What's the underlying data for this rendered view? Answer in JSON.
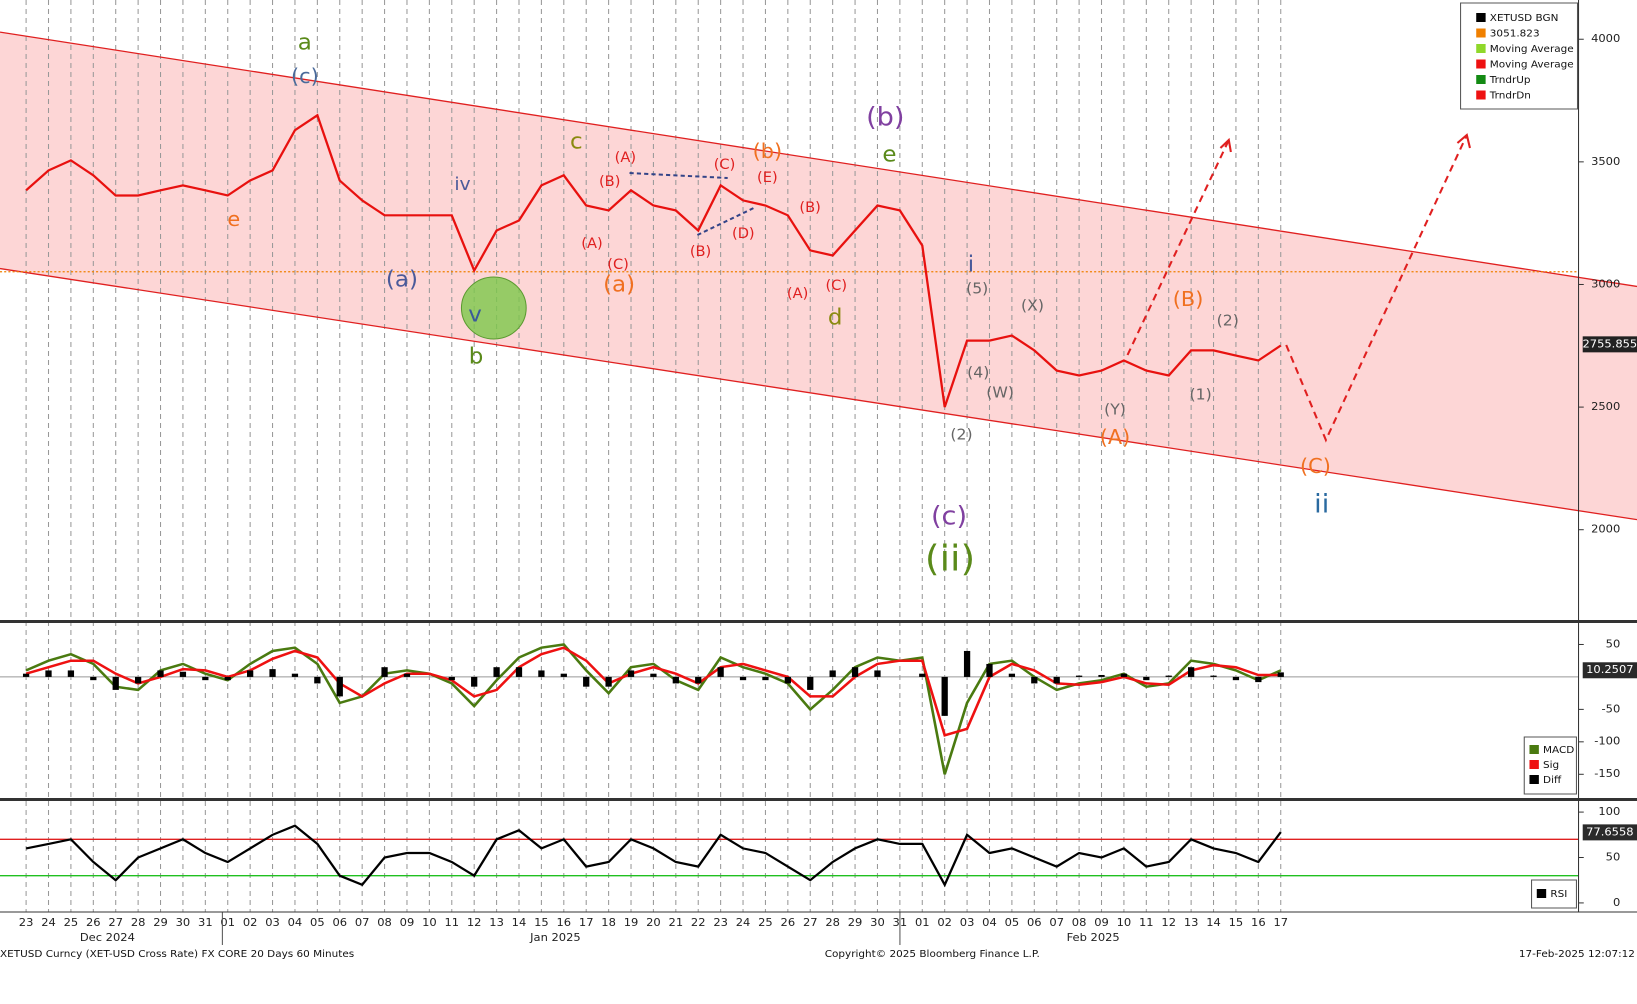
{
  "chart_data": [
    {
      "type": "line",
      "categories": [
        "23",
        "24",
        "25",
        "26",
        "27",
        "28",
        "29",
        "30",
        "31",
        "01",
        "02",
        "03",
        "04",
        "05",
        "06",
        "07",
        "08",
        "09",
        "10",
        "11",
        "12",
        "13",
        "14",
        "15",
        "16",
        "17",
        "18",
        "19",
        "20",
        "21",
        "22",
        "23",
        "24",
        "25",
        "26",
        "27",
        "28",
        "29",
        "30",
        "31",
        "01",
        "02",
        "03",
        "04",
        "05",
        "06",
        "07",
        "08",
        "09",
        "10",
        "11",
        "12",
        "13",
        "14",
        "15",
        "16",
        "17"
      ],
      "months": [
        "Dec 2024",
        "Jan 2025",
        "Feb 2025"
      ],
      "series": [
        {
          "name": "XETUSD BGN",
          "color": "#e8110f",
          "values": [
            3384,
            3465,
            3506,
            3445,
            3363,
            3363,
            3384,
            3404,
            3384,
            3363,
            3424,
            3465,
            3629,
            3690,
            3424,
            3343,
            3282,
            3282,
            3282,
            3282,
            3057,
            3220,
            3261,
            3404,
            3445,
            3322,
            3302,
            3384,
            3322,
            3302,
            3220,
            3404,
            3343,
            3322,
            3282,
            3139,
            3118,
            3220,
            3322,
            3302,
            3159,
            2500,
            2771,
            2771,
            2792,
            2731,
            2649,
            2629,
            2649,
            2690,
            2649,
            2629,
            2731,
            2731,
            2710,
            2690,
            2751
          ]
        }
      ],
      "level": {
        "value": 3051.823,
        "color": "#f08000"
      },
      "legend": [
        {
          "name": "XETUSD BGN",
          "color": "#000000"
        },
        {
          "name": "Moving Average",
          "color": "#8fd82a"
        },
        {
          "name": "Moving Average",
          "color": "#ee1111"
        },
        {
          "name": "TrndrUp",
          "color": "#138a13"
        },
        {
          "name": "TrndrDn",
          "color": "#ee1111"
        }
      ],
      "last_value": 2755.855,
      "channel_upper": [
        4029,
        2992
      ],
      "channel_lower": [
        3065,
        2041
      ],
      "ylim": [
        1640,
        4160
      ],
      "yticks": [
        2000,
        2500,
        3000,
        3500,
        4000
      ],
      "annotations": [
        {
          "text": "a",
          "color": "#5a8a1a"
        },
        {
          "text": "(c)",
          "color": "#4a6a9a"
        },
        {
          "text": "e",
          "color": "#f07020"
        },
        {
          "text": "iv",
          "color": "#4a5a9a"
        },
        {
          "text": "(a)",
          "color": "#4a5a9a"
        },
        {
          "text": "v",
          "color": "#3a5a9a"
        },
        {
          "text": "b",
          "color": "#5a8a1a"
        },
        {
          "text": "c",
          "color": "#8a8a10"
        },
        {
          "text": "(a)",
          "color": "#f07020"
        },
        {
          "text": "(b)",
          "color": "#f07020"
        },
        {
          "text": "(b)",
          "color": "#8040a0"
        },
        {
          "text": "e",
          "color": "#5a8a1a"
        },
        {
          "text": "d",
          "color": "#8a8a10"
        },
        {
          "text": "i",
          "color": "#4a5a9a"
        },
        {
          "text": "(c)",
          "color": "#8040a0"
        },
        {
          "text": "(ii)",
          "color": "#5a8a1a"
        },
        {
          "text": "(B)",
          "color": "#f07020"
        },
        {
          "text": "(A)",
          "color": "#f07020"
        },
        {
          "text": "(C)",
          "color": "#f07020"
        },
        {
          "text": "ii",
          "color": "#2a6aa0"
        },
        {
          "text": "(A)",
          "color": "#e02020"
        },
        {
          "text": "(B)",
          "color": "#e02020"
        },
        {
          "text": "(A)",
          "color": "#e02020"
        },
        {
          "text": "(C)",
          "color": "#e02020"
        },
        {
          "text": "(C)",
          "color": "#e02020"
        },
        {
          "text": "(E)",
          "color": "#e02020"
        },
        {
          "text": "(D)",
          "color": "#e02020"
        },
        {
          "text": "(B)",
          "color": "#e02020"
        },
        {
          "text": "(B)",
          "color": "#e02020"
        },
        {
          "text": "(A)",
          "color": "#e02020"
        },
        {
          "text": "(C)",
          "color": "#e02020"
        },
        {
          "text": "(5)",
          "color": "#666666"
        },
        {
          "text": "(X)",
          "color": "#666666"
        },
        {
          "text": "(2)",
          "color": "#666666"
        },
        {
          "text": "(4)",
          "color": "#666666"
        },
        {
          "text": "(W)",
          "color": "#666666"
        },
        {
          "text": "(Y)",
          "color": "#666666"
        },
        {
          "text": "(1)",
          "color": "#666666"
        },
        {
          "text": "(2)",
          "color": "#666666"
        }
      ]
    },
    {
      "type": "line",
      "series": [
        {
          "name": "MACD",
          "color": "#4a7a10",
          "values": [
            10,
            25,
            35,
            20,
            -15,
            -20,
            10,
            20,
            5,
            -5,
            20,
            40,
            45,
            20,
            -40,
            -30,
            5,
            10,
            5,
            -10,
            -45,
            -5,
            30,
            45,
            50,
            10,
            -25,
            15,
            20,
            -5,
            -20,
            30,
            15,
            5,
            -10,
            -50,
            -20,
            15,
            30,
            25,
            30,
            -150,
            -40,
            20,
            25,
            0,
            -20,
            -10,
            -5,
            5,
            -15,
            -10,
            25,
            20,
            10,
            -5,
            10
          ]
        },
        {
          "name": "Sig",
          "color": "#ee1111",
          "values": [
            5,
            15,
            25,
            25,
            5,
            -10,
            0,
            12,
            10,
            0,
            10,
            28,
            40,
            30,
            -10,
            -30,
            -10,
            5,
            5,
            -5,
            -30,
            -20,
            15,
            35,
            45,
            25,
            -10,
            5,
            15,
            5,
            -10,
            15,
            20,
            10,
            0,
            -30,
            -30,
            0,
            20,
            25,
            25,
            -90,
            -80,
            0,
            20,
            10,
            -10,
            -12,
            -8,
            0,
            -10,
            -12,
            10,
            18,
            15,
            3,
            3
          ]
        },
        {
          "name": "Diff",
          "color": "#000000",
          "values": [
            5,
            10,
            10,
            -5,
            -20,
            -10,
            10,
            8,
            -5,
            -5,
            10,
            12,
            5,
            -10,
            -30,
            0,
            15,
            5,
            0,
            -5,
            -15,
            15,
            15,
            10,
            5,
            -15,
            -15,
            10,
            5,
            -10,
            -10,
            15,
            -5,
            -5,
            -10,
            -20,
            10,
            15,
            10,
            0,
            5,
            -60,
            40,
            20,
            5,
            -10,
            -10,
            2,
            3,
            5,
            -5,
            2,
            15,
            2,
            -5,
            -8,
            7
          ]
        }
      ],
      "last_value": 10.2507,
      "ylim": [
        -185,
        80
      ],
      "yticks": [
        -150,
        -100,
        -50,
        50
      ]
    },
    {
      "type": "line",
      "series": [
        {
          "name": "RSI",
          "color": "#000000",
          "values": [
            60,
            65,
            70,
            45,
            25,
            50,
            60,
            70,
            55,
            45,
            60,
            75,
            85,
            65,
            30,
            20,
            50,
            55,
            55,
            45,
            30,
            70,
            80,
            60,
            70,
            40,
            45,
            70,
            60,
            45,
            40,
            75,
            60,
            55,
            40,
            25,
            45,
            60,
            70,
            65,
            65,
            20,
            75,
            55,
            60,
            50,
            40,
            55,
            50,
            60,
            40,
            45,
            70,
            60,
            55,
            45,
            78
          ]
        }
      ],
      "levels": [
        {
          "value": 70,
          "color": "#e02020"
        },
        {
          "value": 30,
          "color": "#20c020"
        }
      ],
      "last_value": 77.6558,
      "ylim": [
        -10,
        110
      ],
      "yticks": [
        0,
        50,
        100
      ]
    }
  ],
  "footer": {
    "left": "XETUSD Curncy (XET-USD Cross Rate) FX CORE 20 Days 60 Minutes",
    "center": "Copyright© 2025 Bloomberg Finance L.P.",
    "right": "17-Feb-2025 12:07:12"
  }
}
